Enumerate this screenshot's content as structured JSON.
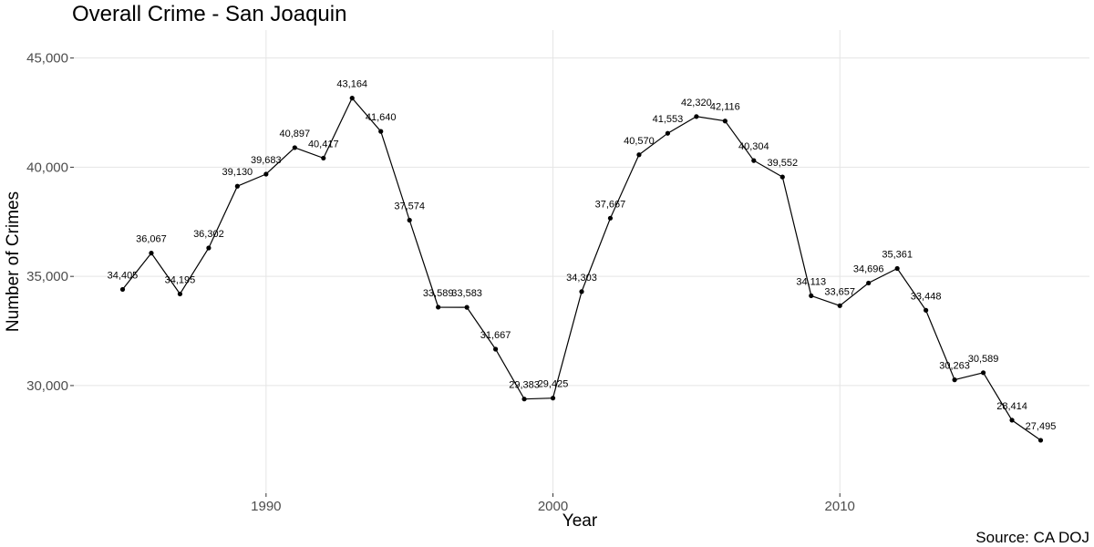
{
  "chart_data": {
    "type": "line",
    "title": "Overall Crime - San Joaquin",
    "xlabel": "Year",
    "ylabel": "Number of Crimes",
    "caption": "Source: CA DOJ",
    "x": [
      1985,
      1986,
      1987,
      1988,
      1989,
      1990,
      1991,
      1992,
      1993,
      1994,
      1995,
      1996,
      1997,
      1998,
      1999,
      2000,
      2001,
      2002,
      2003,
      2004,
      2005,
      2006,
      2007,
      2008,
      2009,
      2010,
      2011,
      2012,
      2013,
      2014,
      2015,
      2016,
      2017
    ],
    "values": [
      34405,
      36067,
      34195,
      36302,
      39130,
      39683,
      40897,
      40417,
      43164,
      41640,
      37574,
      33589,
      33583,
      31667,
      29383,
      29425,
      34303,
      37667,
      40570,
      41553,
      42320,
      42116,
      40304,
      39552,
      34113,
      33657,
      34696,
      35361,
      33448,
      30263,
      30589,
      28414,
      27495
    ],
    "labels": [
      "34,405",
      "36,067",
      "34,195",
      "36,302",
      "39,130",
      "39,683",
      "40,897",
      "40,417",
      "43,164",
      "41,640",
      "37,574",
      "33,589",
      "33,583",
      "31,667",
      "29,383",
      "29,425",
      "34,303",
      "37,667",
      "40,570",
      "41,553",
      "42,320",
      "42,116",
      "40,304",
      "39,552",
      "34,113",
      "33,657",
      "34,696",
      "35,361",
      "33,448",
      "30,263",
      "30,589",
      "28,414",
      "27,495"
    ],
    "x_ticks": [
      1990,
      2000,
      2010
    ],
    "x_tick_labels": [
      "1990",
      "2000",
      "2010"
    ],
    "y_ticks": [
      30000,
      35000,
      40000,
      45000
    ],
    "y_tick_labels": [
      "30,000",
      "35,000",
      "40,000",
      "45,000"
    ],
    "xlim": [
      1983.3,
      2018.7
    ],
    "ylim": [
      25070,
      46280
    ],
    "grid": true,
    "legend": "none",
    "colors": {
      "line": "#000000",
      "grid": "#e5e5e5",
      "tick_text": "#4d4d4d"
    }
  }
}
